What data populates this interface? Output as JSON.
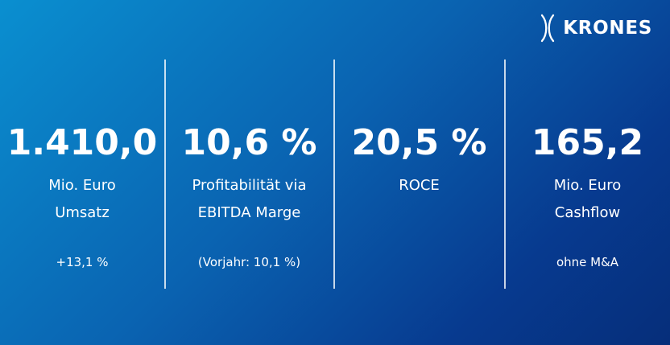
{
  "brand": {
    "name": "KRONES"
  },
  "stats": [
    {
      "value": "1.410,0",
      "label_line1": "Mio. Euro",
      "label_line2": "Umsatz",
      "note": "+13,1 %"
    },
    {
      "value": "10,6 %",
      "label_line1": "Profitabilität via",
      "label_line2": "EBITDA Marge",
      "note": "(Vorjahr: 10,1 %)"
    },
    {
      "value": "20,5 %",
      "label_line1": "ROCE",
      "label_line2": "",
      "note": ""
    },
    {
      "value": "165,2",
      "label_line1": "Mio. Euro",
      "label_line2": "Cashflow",
      "note": "ohne M&A"
    }
  ],
  "colors": {
    "background_start": "#0a8fd0",
    "background_end": "#062e7a",
    "text": "#ffffff"
  }
}
